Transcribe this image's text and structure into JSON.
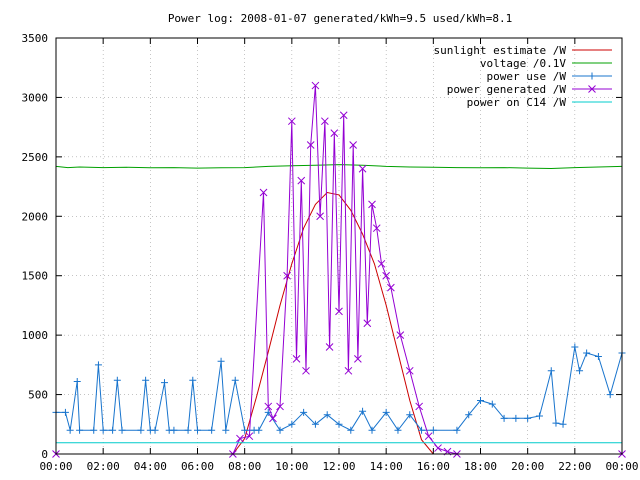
{
  "chart_data": {
    "type": "line",
    "title": "Power log: 2008-01-07 generated/kWh=9.5 used/kWh=8.1",
    "xlabel": "",
    "ylabel": "",
    "xlim": [
      0,
      24
    ],
    "ylim": [
      0,
      3500
    ],
    "x_ticks": [
      "00:00",
      "02:00",
      "04:00",
      "06:00",
      "08:00",
      "10:00",
      "12:00",
      "14:00",
      "16:00",
      "18:00",
      "20:00",
      "22:00",
      "00:00"
    ],
    "y_ticks": [
      0,
      500,
      1000,
      1500,
      2000,
      2500,
      3000,
      3500
    ],
    "grid": true,
    "legend_position": "top-right",
    "series": [
      {
        "name": "sunlight estimate /W",
        "color": "#cc0000",
        "marker": "none",
        "x": [
          0,
          7.5,
          8.0,
          8.5,
          9.0,
          9.5,
          10.0,
          10.5,
          11.0,
          11.5,
          12.0,
          12.5,
          13.0,
          13.5,
          14.0,
          14.5,
          15.0,
          15.5,
          16.0,
          24
        ],
        "y": [
          0,
          0,
          130,
          480,
          860,
          1250,
          1600,
          1900,
          2100,
          2200,
          2180,
          2050,
          1850,
          1600,
          1250,
          850,
          450,
          120,
          0,
          0
        ]
      },
      {
        "name": "voltage /0.1V",
        "color": "#00a000",
        "marker": "none",
        "x": [
          0,
          0.5,
          1,
          2,
          3,
          4,
          5,
          6,
          7,
          8,
          9,
          10,
          11,
          12,
          13,
          14,
          15,
          16,
          17,
          18,
          19,
          20,
          21,
          22,
          23,
          24
        ],
        "y": [
          2420,
          2410,
          2415,
          2410,
          2412,
          2408,
          2410,
          2405,
          2408,
          2410,
          2420,
          2425,
          2430,
          2435,
          2430,
          2420,
          2415,
          2412,
          2410,
          2408,
          2410,
          2405,
          2402,
          2410,
          2415,
          2420
        ]
      },
      {
        "name": "power use /W",
        "color": "#1874cd",
        "marker": "+",
        "x": [
          0,
          0.4,
          0.6,
          0.9,
          1.0,
          1.6,
          1.8,
          2.0,
          2.4,
          2.6,
          2.8,
          3.6,
          3.8,
          4.0,
          4.2,
          4.6,
          4.8,
          5.0,
          5.6,
          5.8,
          6.0,
          6.6,
          7.0,
          7.2,
          7.6,
          8.0,
          8.4,
          8.6,
          9.0,
          9.5,
          10.0,
          10.5,
          11.0,
          11.5,
          12.0,
          12.5,
          13.0,
          13.4,
          14.0,
          14.5,
          15.0,
          15.5,
          16.0,
          17.0,
          17.5,
          18.0,
          18.5,
          19.0,
          19.5,
          20.0,
          20.5,
          21.0,
          21.2,
          21.5,
          22.0,
          22.2,
          22.5,
          23.0,
          23.5,
          24.0
        ],
        "y": [
          350,
          350,
          200,
          610,
          200,
          200,
          750,
          200,
          200,
          620,
          200,
          200,
          620,
          200,
          200,
          600,
          200,
          200,
          200,
          620,
          200,
          200,
          780,
          200,
          620,
          200,
          200,
          200,
          350,
          200,
          250,
          350,
          250,
          330,
          250,
          200,
          360,
          200,
          350,
          200,
          330,
          200,
          200,
          200,
          330,
          450,
          420,
          300,
          300,
          300,
          320,
          700,
          260,
          250,
          900,
          700,
          850,
          820,
          500,
          850
        ]
      },
      {
        "name": "power generated /W",
        "color": "#9400d3",
        "marker": "x",
        "x": [
          0,
          7.5,
          7.8,
          8.2,
          8.8,
          9.0,
          9.2,
          9.5,
          9.8,
          10.0,
          10.2,
          10.4,
          10.6,
          10.8,
          11.0,
          11.2,
          11.4,
          11.6,
          11.8,
          12.0,
          12.2,
          12.4,
          12.6,
          12.8,
          13.0,
          13.2,
          13.4,
          13.6,
          13.8,
          14.0,
          14.2,
          14.6,
          15.0,
          15.4,
          15.8,
          16.2,
          16.6,
          17.0,
          24
        ],
        "y": [
          0,
          0,
          130,
          150,
          2200,
          400,
          300,
          400,
          1500,
          2800,
          800,
          2300,
          700,
          2600,
          3100,
          2000,
          2800,
          900,
          2700,
          1200,
          2850,
          700,
          2600,
          800,
          2400,
          1100,
          2100,
          1900,
          1600,
          1500,
          1400,
          1000,
          700,
          400,
          150,
          50,
          20,
          0,
          0
        ]
      },
      {
        "name": "power on C14 /W",
        "color": "#00cccc",
        "marker": "none",
        "x": [
          0,
          24
        ],
        "y": [
          95,
          95
        ]
      }
    ]
  }
}
